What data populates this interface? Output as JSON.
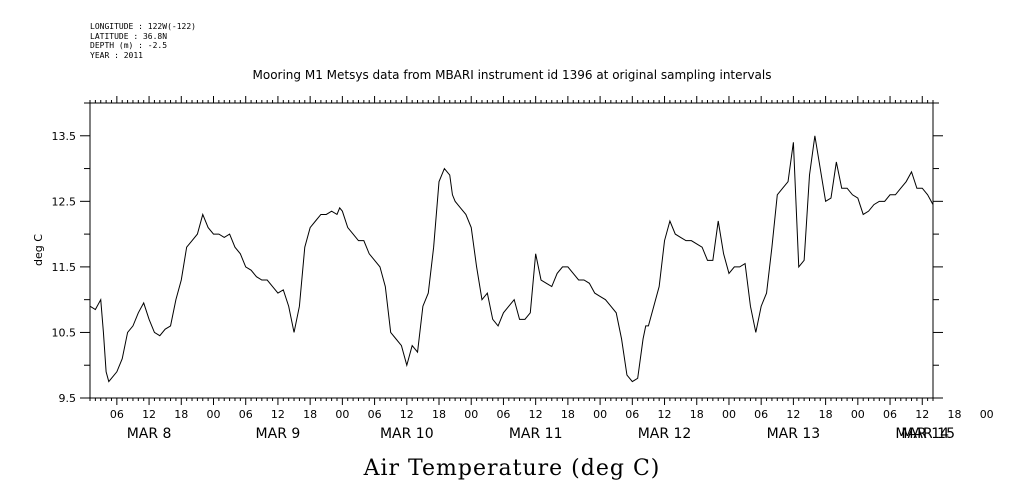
{
  "meta": {
    "longitude": "LONGITUDE : 122W(-122)",
    "latitude": "LATITUDE : 36.8N",
    "depth": "DEPTH (m) : -2.5",
    "year": "YEAR : 2011"
  },
  "chart_data": {
    "type": "line",
    "title": "Mooring M1 Metsys data from MBARI instrument id 1396 at original sampling intervals",
    "footer": "Air Temperature (deg C)",
    "ylabel": "deg C",
    "xlabel": "",
    "ylim": [
      9.5,
      14.0
    ],
    "xlim": [
      1.0,
      158.0
    ],
    "x_units": "hours since 2011-03-08 00:00",
    "y_ticks": [
      "9.5",
      "10.5",
      "11.5",
      "12.5",
      "13.5"
    ],
    "hour_ticks": [
      "06",
      "12",
      "18",
      "00",
      "06",
      "12",
      "18",
      "00",
      "06",
      "12",
      "18",
      "00",
      "06",
      "12",
      "18",
      "00",
      "06",
      "12",
      "18",
      "00",
      "06",
      "12",
      "18",
      "00",
      "06",
      "12",
      "18",
      "00",
      "06",
      "12",
      "18",
      "00"
    ],
    "date_labels": [
      "MAR  8",
      "MAR  9",
      "MAR 10",
      "MAR 11",
      "MAR 12",
      "MAR 13",
      "MAR 14",
      "MAR 15"
    ],
    "series": [
      {
        "x": [
          1,
          2,
          3,
          3.5,
          4,
          4.5,
          5,
          6,
          7,
          8,
          9,
          10,
          11,
          12,
          13,
          14,
          15,
          16,
          17,
          18,
          19,
          20,
          21,
          22,
          23,
          24,
          25,
          26,
          27,
          28,
          29,
          30,
          31,
          32,
          33,
          34,
          35,
          36,
          37,
          38,
          39,
          40,
          41,
          42,
          43,
          44,
          45,
          46,
          47,
          47.5,
          48,
          49,
          50,
          51,
          52,
          53,
          54,
          55,
          56,
          57,
          58,
          59,
          60,
          61,
          62,
          63,
          64,
          65,
          66,
          67,
          68,
          68.5,
          69,
          70,
          71,
          72,
          73,
          74,
          75,
          76,
          77,
          78,
          79,
          80,
          81,
          82,
          83,
          84,
          85,
          86,
          87,
          88,
          89,
          90,
          91,
          92,
          93,
          94,
          95,
          96,
          97,
          98,
          99,
          100,
          101,
          102,
          103,
          104,
          104.5,
          105,
          106,
          107,
          108,
          109,
          110,
          111,
          112,
          113,
          114,
          115,
          116,
          117,
          118,
          119,
          120,
          121,
          122,
          123,
          124,
          125,
          126,
          127,
          128,
          129,
          130,
          131,
          132,
          133,
          134,
          135,
          136,
          137,
          138,
          139,
          140,
          141,
          142,
          143,
          144,
          145,
          146,
          147,
          148,
          149,
          150,
          151,
          152,
          153,
          154,
          155,
          156,
          157,
          158
        ],
        "y": [
          10.9,
          10.85,
          11.0,
          10.5,
          9.9,
          9.75,
          9.8,
          9.9,
          10.1,
          10.5,
          10.6,
          10.8,
          10.95,
          10.7,
          10.5,
          10.45,
          10.55,
          10.6,
          11.0,
          11.3,
          11.8,
          11.9,
          12.0,
          12.3,
          12.1,
          12.0,
          12.0,
          11.95,
          12.0,
          11.8,
          11.7,
          11.5,
          11.45,
          11.35,
          11.3,
          11.3,
          11.2,
          11.1,
          11.15,
          10.9,
          10.5,
          10.9,
          11.8,
          12.1,
          12.2,
          12.3,
          12.3,
          12.35,
          12.3,
          12.4,
          12.35,
          12.1,
          12.0,
          11.9,
          11.9,
          11.7,
          11.6,
          11.5,
          11.2,
          10.5,
          10.4,
          10.3,
          10.0,
          10.3,
          10.2,
          10.9,
          11.1,
          11.8,
          12.8,
          13.0,
          12.9,
          12.6,
          12.5,
          12.4,
          12.3,
          12.1,
          11.5,
          11.0,
          11.1,
          10.7,
          10.6,
          10.8,
          10.9,
          11.0,
          10.7,
          10.7,
          10.8,
          11.7,
          11.3,
          11.25,
          11.2,
          11.4,
          11.5,
          11.5,
          11.4,
          11.3,
          11.3,
          11.25,
          11.1,
          11.05,
          11.0,
          10.9,
          10.8,
          10.4,
          9.85,
          9.75,
          9.8,
          10.4,
          10.6,
          10.6,
          10.9,
          11.2,
          11.9,
          12.2,
          12.0,
          11.95,
          11.9,
          11.9,
          11.85,
          11.8,
          11.6,
          11.6,
          12.2,
          11.7,
          11.4,
          11.5,
          11.5,
          11.55,
          10.9,
          10.5,
          10.9,
          11.1,
          11.8,
          12.6,
          12.7,
          12.8,
          13.4,
          11.5,
          11.6,
          12.9,
          13.5,
          13.0,
          12.5,
          12.55,
          13.1,
          12.7,
          12.7,
          12.6,
          12.55,
          12.3,
          12.35,
          12.45,
          12.5,
          12.5,
          12.6,
          12.6,
          12.7,
          12.8,
          12.95,
          12.7,
          12.7,
          12.6,
          12.45
        ],
        "color": "#000000"
      }
    ]
  }
}
